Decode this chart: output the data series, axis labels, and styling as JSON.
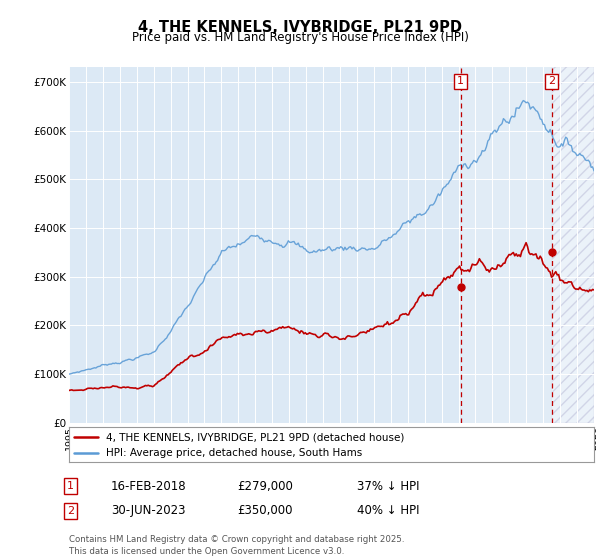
{
  "title": "4, THE KENNELS, IVYBRIDGE, PL21 9PD",
  "subtitle": "Price paid vs. HM Land Registry's House Price Index (HPI)",
  "hpi_label": "HPI: Average price, detached house, South Hams",
  "property_label": "4, THE KENNELS, IVYBRIDGE, PL21 9PD (detached house)",
  "hpi_color": "#5b9bd5",
  "property_color": "#c00000",
  "dashed_color": "#c00000",
  "marker1_year": 2018.12,
  "marker2_year": 2023.5,
  "sale1_date": "16-FEB-2018",
  "sale1_price": 279000,
  "sale1_pct": "37% ↓ HPI",
  "sale2_date": "30-JUN-2023",
  "sale2_price": 350000,
  "sale2_pct": "40% ↓ HPI",
  "ylim_max": 730000,
  "xmin": 1995.0,
  "xmax": 2026.0,
  "footnote": "Contains HM Land Registry data © Crown copyright and database right 2025.\nThis data is licensed under the Open Government Licence v3.0.",
  "plot_bg": "#dce9f5",
  "hatch_bg": "#d0e0f0",
  "fig_bg": "#ffffff"
}
